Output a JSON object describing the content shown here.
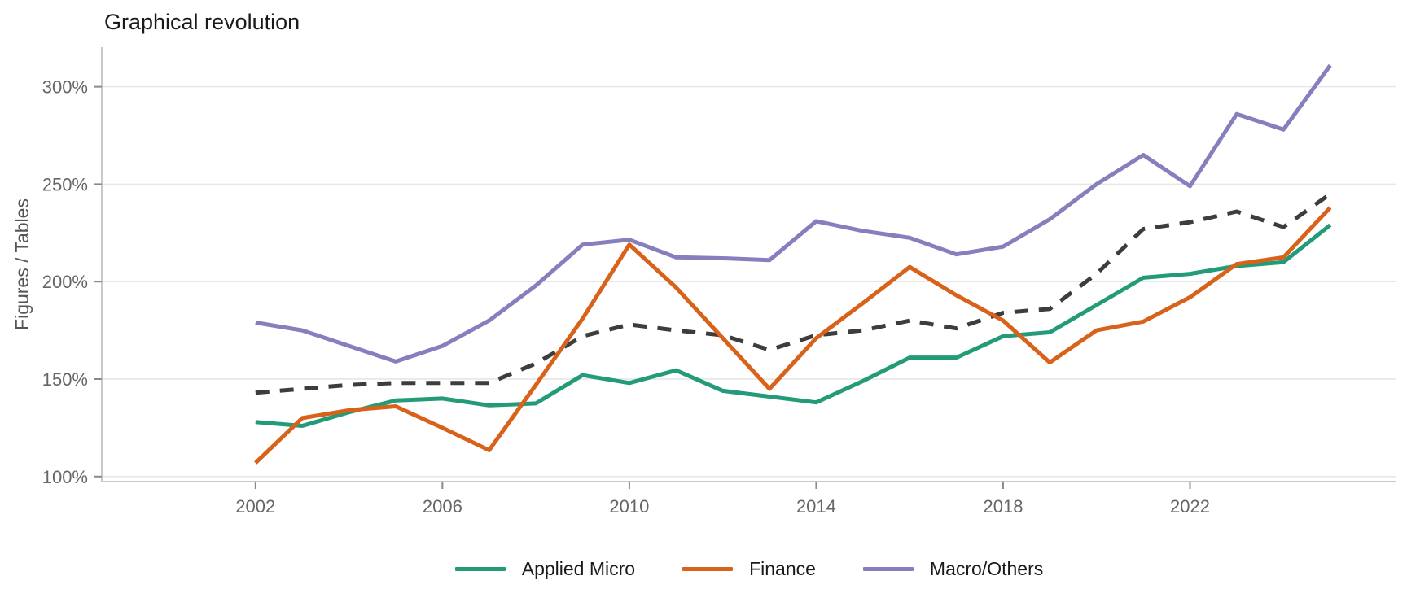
{
  "title": "Graphical revolution",
  "y_axis": {
    "title": "Figures / Tables",
    "tick_suffix": "%"
  },
  "chart_data": {
    "type": "line",
    "title": "Graphical revolution",
    "xlabel": "",
    "ylabel": "Figures / Tables",
    "x": [
      2002,
      2003,
      2004,
      2005,
      2006,
      2007,
      2008,
      2009,
      2010,
      2011,
      2012,
      2013,
      2014,
      2015,
      2016,
      2017,
      2018,
      2019,
      2020,
      2021,
      2022,
      2023,
      2024,
      2025
    ],
    "x_tick_labels": [
      "2002",
      "2006",
      "2010",
      "2014",
      "2018",
      "2022"
    ],
    "x_ticks": [
      2002,
      2006,
      2010,
      2014,
      2018,
      2022
    ],
    "y_ticks": [
      100,
      150,
      200,
      250,
      300
    ],
    "y_tick_labels": [
      "100%",
      "150%",
      "200%",
      "250%",
      "300%"
    ],
    "xlim": [
      1998.71,
      2026.4
    ],
    "ylim": [
      97.4,
      320.3
    ],
    "grid": "horizontal-only",
    "legend_position": "bottom-center",
    "series": [
      {
        "id": "applied-micro",
        "name": "Applied Micro",
        "color": "#239b78",
        "dashed": false,
        "in_legend": true,
        "values": [
          128,
          126,
          133,
          139,
          140,
          136.5,
          137.5,
          152,
          148,
          154.5,
          144,
          141,
          138,
          149,
          161,
          161,
          172,
          174,
          188,
          202,
          204,
          208,
          210,
          229
        ]
      },
      {
        "id": "finance",
        "name": "Finance",
        "color": "#d8621a",
        "dashed": false,
        "in_legend": true,
        "values": [
          107,
          130,
          134,
          136,
          125,
          113.5,
          147,
          181,
          219,
          197,
          171,
          145,
          171,
          189,
          207.5,
          193,
          180,
          158.5,
          175,
          179.5,
          192,
          209,
          212.5,
          238
        ]
      },
      {
        "id": "macro-others",
        "name": "Macro/Others",
        "color": "#857fbd",
        "dashed": false,
        "in_legend": true,
        "values": [
          179,
          175,
          167,
          159,
          167,
          180,
          198,
          219,
          221.5,
          212.5,
          212,
          211,
          231,
          226,
          222.5,
          214,
          218,
          232,
          250,
          265,
          249,
          286,
          278,
          311
        ]
      },
      {
        "id": "unlabeled-dashed",
        "name": "",
        "color": "#3d3d3d",
        "dashed": true,
        "in_legend": false,
        "values": [
          143,
          145,
          147,
          148,
          148,
          148,
          158,
          172,
          178,
          175,
          172.5,
          165,
          172.5,
          175,
          180,
          176,
          184,
          186,
          204,
          227,
          230.5,
          236,
          228,
          245
        ]
      }
    ]
  },
  "style": {
    "grid_color": "#e6e6e6",
    "axis_line_color": "#c9c9c9",
    "tick_color": "#8a8a8a",
    "tick_label_color": "#666666",
    "title_color": "#1a1a1a",
    "line_width": 5
  }
}
